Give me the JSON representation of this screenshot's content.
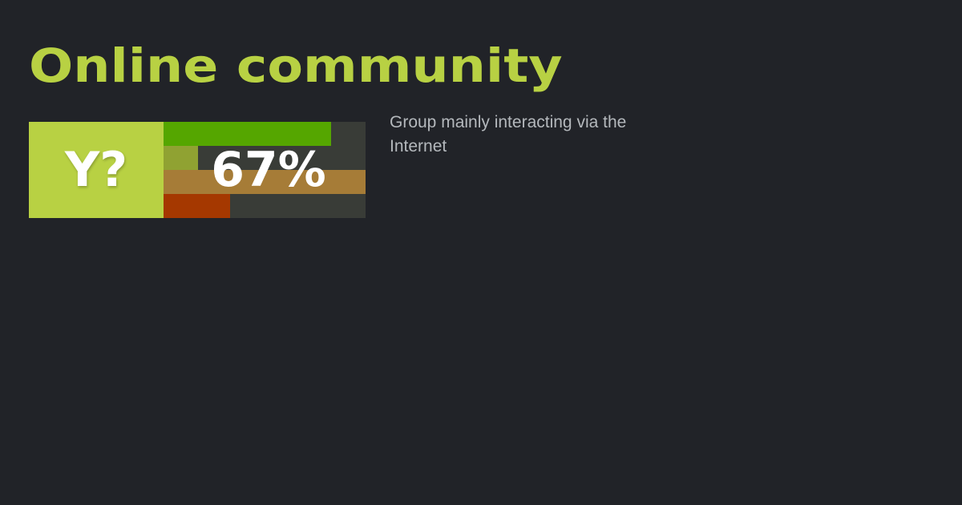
{
  "title": "Online community",
  "badge": {
    "prefix": "Y?",
    "percent_text": "67%",
    "bars": [
      {
        "fraction": 0.83,
        "color": "#55a600"
      },
      {
        "fraction": 0.17,
        "color": "#90a232"
      },
      {
        "fraction": 1.0,
        "color": "#a67c37"
      },
      {
        "fraction": 0.33,
        "color": "#a53800"
      }
    ]
  },
  "description": "Group mainly interacting via the Internet"
}
